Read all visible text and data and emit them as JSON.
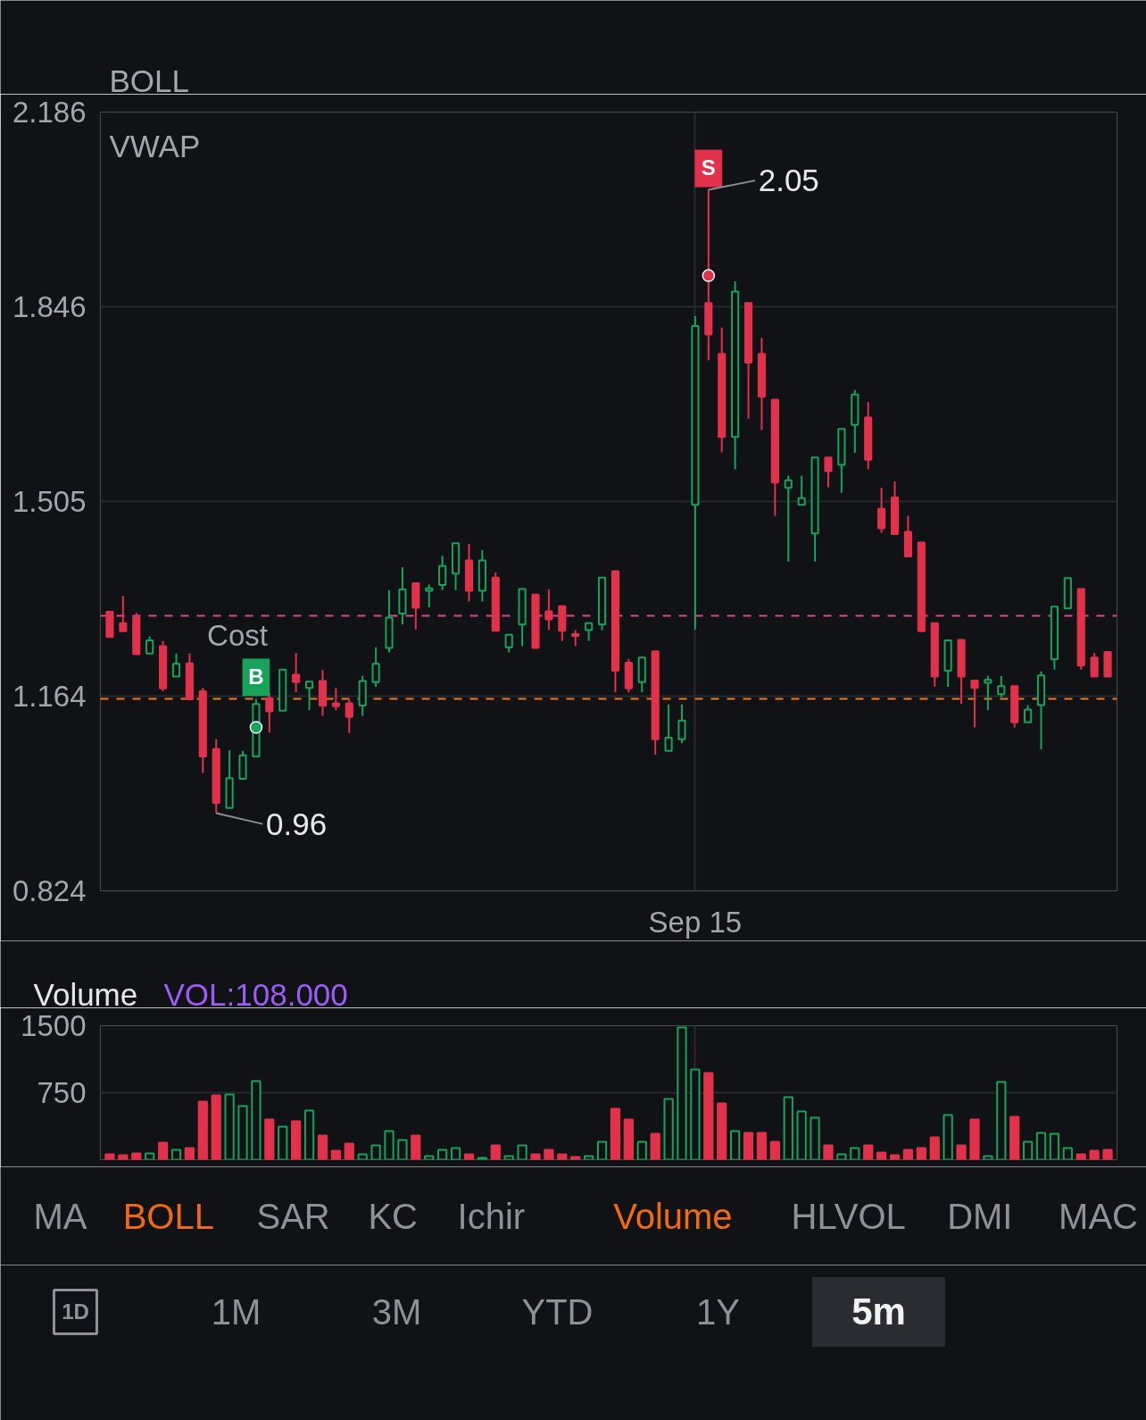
{
  "chart_data": [
    {
      "type": "candlestick",
      "annotations": [
        "BOLL",
        "VWAP",
        "2.05",
        "0.96"
      ],
      "categories": [
        null,
        null,
        null,
        null,
        null,
        null,
        null,
        null,
        null,
        null,
        null,
        null,
        null,
        null,
        null,
        null,
        null,
        null,
        null,
        null,
        null,
        null,
        null,
        null,
        null,
        null,
        null,
        null,
        null,
        null,
        null,
        null,
        null,
        null,
        null,
        null,
        null,
        null,
        null,
        null,
        null,
        null,
        null,
        null,
        "Sep 15",
        null,
        null,
        null,
        null,
        null,
        null,
        null,
        null,
        null,
        null,
        null,
        null,
        null,
        null,
        null,
        null,
        null,
        null,
        null,
        null,
        null,
        null,
        null,
        null,
        null,
        null,
        null,
        null,
        null,
        null,
        null
      ],
      "ohlc": [
        [
          1.312,
          1.312,
          1.268,
          1.268
        ],
        [
          1.292,
          1.34,
          1.278,
          1.278
        ],
        [
          1.303,
          1.31,
          1.238,
          1.238
        ],
        [
          1.239,
          1.269,
          1.239,
          1.262
        ],
        [
          1.252,
          1.261,
          1.173,
          1.178
        ],
        [
          1.199,
          1.239,
          1.199,
          1.221
        ],
        [
          1.222,
          1.239,
          1.159,
          1.159
        ],
        [
          1.173,
          1.179,
          1.03,
          1.059
        ],
        [
          1.072,
          1.089,
          0.96,
          0.978
        ],
        [
          0.969,
          1.07,
          0.969,
          1.021
        ],
        [
          1.02,
          1.069,
          1.02,
          1.061
        ],
        [
          1.059,
          1.16,
          1.059,
          1.151
        ],
        [
          1.161,
          1.17,
          1.101,
          1.138
        ],
        [
          1.139,
          1.211,
          1.139,
          1.211
        ],
        [
          1.202,
          1.24,
          1.171,
          1.189
        ],
        [
          1.179,
          1.19,
          1.14,
          1.19
        ],
        [
          1.191,
          1.21,
          1.13,
          1.148
        ],
        [
          1.152,
          1.179,
          1.14,
          1.147
        ],
        [
          1.152,
          1.159,
          1.1,
          1.128
        ],
        [
          1.148,
          1.2,
          1.13,
          1.191
        ],
        [
          1.189,
          1.25,
          1.181,
          1.221
        ],
        [
          1.249,
          1.35,
          1.241,
          1.302
        ],
        [
          1.309,
          1.39,
          1.29,
          1.351
        ],
        [
          1.362,
          1.362,
          1.281,
          1.319
        ],
        [
          1.349,
          1.36,
          1.32,
          1.353
        ],
        [
          1.359,
          1.41,
          1.35,
          1.392
        ],
        [
          1.379,
          1.432,
          1.35,
          1.432
        ],
        [
          1.402,
          1.431,
          1.33,
          1.349
        ],
        [
          1.349,
          1.42,
          1.33,
          1.402
        ],
        [
          1.372,
          1.381,
          1.279,
          1.279
        ],
        [
          1.25,
          1.272,
          1.241,
          1.272
        ],
        [
          1.29,
          1.352,
          1.252,
          1.352
        ],
        [
          1.342,
          1.342,
          1.249,
          1.249
        ],
        [
          1.313,
          1.351,
          1.28,
          1.299
        ],
        [
          1.322,
          1.322,
          1.261,
          1.279
        ],
        [
          1.273,
          1.28,
          1.252,
          1.27
        ],
        [
          1.28,
          1.292,
          1.261,
          1.292
        ],
        [
          1.29,
          1.372,
          1.28,
          1.372
        ],
        [
          1.383,
          1.383,
          1.171,
          1.209
        ],
        [
          1.223,
          1.23,
          1.171,
          1.178
        ],
        [
          1.189,
          1.232,
          1.171,
          1.232
        ],
        [
          1.243,
          1.243,
          1.062,
          1.089
        ],
        [
          1.069,
          1.15,
          1.069,
          1.092
        ],
        [
          1.089,
          1.15,
          1.082,
          1.122
        ],
        [
          1.499,
          1.829,
          1.281,
          1.812
        ],
        [
          1.852,
          2.05,
          1.752,
          1.797
        ],
        [
          1.763,
          1.809,
          1.591,
          1.618
        ],
        [
          1.618,
          1.89,
          1.561,
          1.872
        ],
        [
          1.852,
          1.852,
          1.65,
          1.748
        ],
        [
          1.763,
          1.791,
          1.63,
          1.688
        ],
        [
          1.683,
          1.683,
          1.48,
          1.538
        ],
        [
          1.529,
          1.55,
          1.4,
          1.542
        ],
        [
          1.499,
          1.55,
          1.499,
          1.511
        ],
        [
          1.449,
          1.582,
          1.4,
          1.582
        ],
        [
          1.582,
          1.582,
          1.53,
          1.558
        ],
        [
          1.569,
          1.632,
          1.52,
          1.632
        ],
        [
          1.639,
          1.7,
          1.59,
          1.692
        ],
        [
          1.652,
          1.679,
          1.561,
          1.578
        ],
        [
          1.492,
          1.529,
          1.45,
          1.458
        ],
        [
          1.512,
          1.54,
          1.448,
          1.448
        ],
        [
          1.452,
          1.48,
          1.409,
          1.409
        ],
        [
          1.433,
          1.433,
          1.278,
          1.278
        ],
        [
          1.292,
          1.292,
          1.181,
          1.199
        ],
        [
          1.209,
          1.262,
          1.181,
          1.262
        ],
        [
          1.263,
          1.263,
          1.151,
          1.199
        ],
        [
          1.192,
          1.192,
          1.11,
          1.179
        ],
        [
          1.188,
          1.2,
          1.14,
          1.193
        ],
        [
          1.168,
          1.2,
          1.162,
          1.182
        ],
        [
          1.182,
          1.182,
          1.11,
          1.119
        ],
        [
          1.119,
          1.149,
          1.119,
          1.141
        ],
        [
          1.149,
          1.208,
          1.071,
          1.201
        ],
        [
          1.229,
          1.321,
          1.211,
          1.321
        ],
        [
          1.318,
          1.371,
          1.318,
          1.371
        ],
        [
          1.352,
          1.352,
          1.211,
          1.218
        ],
        [
          1.232,
          1.24,
          1.199,
          1.199
        ],
        [
          1.242,
          1.242,
          1.199,
          1.199
        ]
      ],
      "colors": [
        "#e2314b",
        "#e2314b",
        "#e2314b",
        "#17a35a",
        "#e2314b",
        "#17a35a",
        "#e2314b",
        "#e2314b",
        "#e2314b",
        "#17a35a",
        "#17a35a",
        "#17a35a",
        "#e2314b",
        "#17a35a",
        "#e2314b",
        "#17a35a",
        "#e2314b",
        "#e2314b",
        "#e2314b",
        "#17a35a",
        "#17a35a",
        "#17a35a",
        "#17a35a",
        "#e2314b",
        "#17a35a",
        "#17a35a",
        "#17a35a",
        "#e2314b",
        "#17a35a",
        "#e2314b",
        "#17a35a",
        "#17a35a",
        "#e2314b",
        "#e2314b",
        "#e2314b",
        "#e2314b",
        "#17a35a",
        "#17a35a",
        "#e2314b",
        "#e2314b",
        "#17a35a",
        "#e2314b",
        "#17a35a",
        "#17a35a",
        "#17a35a",
        "#e2314b",
        "#e2314b",
        "#17a35a",
        "#e2314b",
        "#e2314b",
        "#e2314b",
        "#17a35a",
        "#17a35a",
        "#17a35a",
        "#e2314b",
        "#17a35a",
        "#17a35a",
        "#e2314b",
        "#e2314b",
        "#e2314b",
        "#e2314b",
        "#e2314b",
        "#e2314b",
        "#17a35a",
        "#e2314b",
        "#e2314b",
        "#17a35a",
        "#17a35a",
        "#e2314b",
        "#17a35a",
        "#17a35a",
        "#17a35a",
        "#17a35a",
        "#e2314b",
        "#e2314b",
        "#e2314b"
      ],
      "series": [
        {
          "name": "B",
          "type": "scatter",
          "color": "#17a35a",
          "values": [
            null,
            null,
            null,
            null,
            null,
            null,
            null,
            null,
            null,
            null,
            null,
            1.11,
            null,
            null,
            null,
            null,
            null,
            null,
            null,
            null,
            null,
            null,
            null,
            null,
            null,
            null,
            null,
            null,
            null,
            null,
            null,
            null,
            null,
            null,
            null,
            null,
            null,
            null,
            null,
            null,
            null,
            null,
            null,
            null,
            null,
            null,
            null,
            null,
            null,
            null,
            null,
            null,
            null,
            null,
            null,
            null,
            null,
            null,
            null,
            null,
            null,
            null,
            null,
            null,
            null,
            null,
            null,
            null,
            null,
            null,
            null,
            null,
            null,
            null,
            null,
            null
          ]
        },
        {
          "name": "S",
          "type": "scatter",
          "color": "#e2314b",
          "values": [
            null,
            null,
            null,
            null,
            null,
            null,
            null,
            null,
            null,
            null,
            null,
            null,
            null,
            null,
            null,
            null,
            null,
            null,
            null,
            null,
            null,
            null,
            null,
            null,
            null,
            null,
            null,
            null,
            null,
            null,
            null,
            null,
            null,
            null,
            null,
            null,
            null,
            null,
            null,
            null,
            null,
            null,
            null,
            null,
            null,
            1.9,
            null,
            null,
            null,
            null,
            null,
            null,
            null,
            null,
            null,
            null,
            null,
            null,
            null,
            null,
            null,
            null,
            null,
            null,
            null,
            null,
            null,
            null,
            null,
            null,
            null,
            null,
            null,
            null,
            null,
            null
          ]
        }
      ],
      "ylim": [
        0.824,
        2.186
      ],
      "yticks": [
        0.824,
        1.164,
        1.505,
        1.846,
        2.186
      ],
      "grid": true,
      "ref_lines": [
        {
          "axis": "y",
          "value": 1.305,
          "label": "Cost",
          "color": "#e0468c",
          "line_style": "dashed"
        },
        {
          "axis": "y",
          "value": 1.16,
          "color": "#f07a1e",
          "line_style": "dashed"
        }
      ]
    },
    {
      "type": "bar",
      "title": "Volume",
      "subtitle": "VOL:108.000",
      "categories": [
        null,
        null,
        null,
        null,
        null,
        null,
        null,
        null,
        null,
        null,
        null,
        null,
        null,
        null,
        null,
        null,
        null,
        null,
        null,
        null,
        null,
        null,
        null,
        null,
        null,
        null,
        null,
        null,
        null,
        null,
        null,
        null,
        null,
        null,
        null,
        null,
        null,
        null,
        null,
        null,
        null,
        null,
        null,
        null,
        null,
        null,
        null,
        null,
        null,
        null,
        null,
        null,
        null,
        null,
        null,
        null,
        null,
        null,
        null,
        null,
        null,
        null,
        null,
        null,
        null,
        null,
        null,
        null,
        null,
        null,
        null,
        null,
        null,
        null,
        null,
        null
      ],
      "values": [
        60,
        50,
        70,
        70,
        190,
        110,
        130,
        650,
        720,
        730,
        600,
        880,
        450,
        370,
        430,
        550,
        270,
        100,
        180,
        60,
        160,
        320,
        220,
        270,
        40,
        110,
        130,
        60,
        20,
        160,
        40,
        160,
        60,
        110,
        60,
        30,
        40,
        200,
        570,
        450,
        200,
        290,
        680,
        1480,
        1010,
        970,
        630,
        320,
        300,
        300,
        200,
        700,
        540,
        470,
        160,
        60,
        130,
        160,
        80,
        50,
        110,
        130,
        250,
        500,
        160,
        450,
        40,
        870,
        480,
        200,
        300,
        290,
        130,
        60,
        100,
        110
      ],
      "colors": [
        "#e2314b",
        "#e2314b",
        "#e2314b",
        "#17a35a",
        "#e2314b",
        "#17a35a",
        "#e2314b",
        "#e2314b",
        "#e2314b",
        "#17a35a",
        "#17a35a",
        "#17a35a",
        "#e2314b",
        "#17a35a",
        "#e2314b",
        "#17a35a",
        "#e2314b",
        "#e2314b",
        "#e2314b",
        "#17a35a",
        "#17a35a",
        "#17a35a",
        "#17a35a",
        "#e2314b",
        "#17a35a",
        "#17a35a",
        "#17a35a",
        "#e2314b",
        "#17a35a",
        "#e2314b",
        "#17a35a",
        "#17a35a",
        "#e2314b",
        "#e2314b",
        "#e2314b",
        "#e2314b",
        "#17a35a",
        "#17a35a",
        "#e2314b",
        "#e2314b",
        "#17a35a",
        "#e2314b",
        "#17a35a",
        "#17a35a",
        "#17a35a",
        "#e2314b",
        "#e2314b",
        "#17a35a",
        "#e2314b",
        "#e2314b",
        "#e2314b",
        "#17a35a",
        "#17a35a",
        "#17a35a",
        "#e2314b",
        "#17a35a",
        "#17a35a",
        "#e2314b",
        "#e2314b",
        "#e2314b",
        "#e2314b",
        "#e2314b",
        "#e2314b",
        "#17a35a",
        "#e2314b",
        "#e2314b",
        "#17a35a",
        "#17a35a",
        "#e2314b",
        "#17a35a",
        "#17a35a",
        "#17a35a",
        "#17a35a",
        "#e2314b",
        "#e2314b",
        "#e2314b"
      ],
      "ylim": [
        0,
        1500
      ],
      "yticks": [
        750,
        1500
      ],
      "grid": true,
      "tick_labels": "y"
    },
    {
      "type": "other",
      "annotations": [
        "MA",
        "BOLL",
        "SAR",
        "KC",
        "Ichir",
        "Volume",
        "HLVOL",
        "DMI",
        "MAC"
      ],
      "colors": [
        "#8e9196",
        "#f06a10",
        "#8e9196",
        "#8e9196",
        "#8e9196",
        "#f06a10",
        "#8e9196",
        "#8e9196",
        "#8e9196"
      ]
    },
    {
      "type": "other",
      "annotations": [
        "1D",
        "1M",
        "3M",
        "YTD",
        "1Y",
        "5m"
      ],
      "colors": [
        "#8e9196",
        "#8e9196",
        "#8e9196",
        "#8e9196",
        "#8e9196",
        "#f2f2f3"
      ]
    }
  ]
}
